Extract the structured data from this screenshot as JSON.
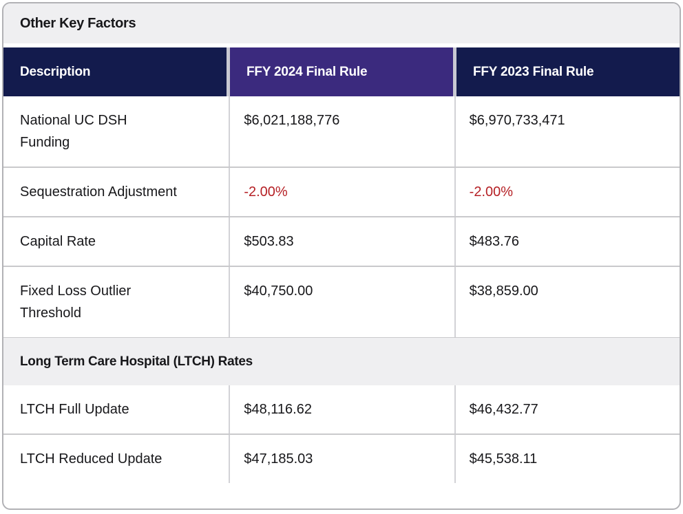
{
  "table": {
    "title": "Other Key Factors",
    "columns": [
      {
        "label": "Description"
      },
      {
        "label": "FFY 2024 Final Rule"
      },
      {
        "label": "FFY 2023 Final Rule"
      }
    ],
    "sections": [
      {
        "rows": [
          {
            "label": "National UC DSH Funding",
            "ffy2024": "$6,021,188,776",
            "ffy2023": "$6,970,733,471"
          },
          {
            "label": "Sequestration Adjustment",
            "ffy2024": "-2.00%",
            "ffy2023": "-2.00%"
          },
          {
            "label": "Capital Rate",
            "ffy2024": "$503.83",
            "ffy2023": "$483.76"
          },
          {
            "label": "Fixed Loss Outlier Threshold",
            "ffy2024": "$40,750.00",
            "ffy2023": "$38,859.00"
          }
        ]
      },
      {
        "section_title": "Long Term Care Hospital (LTCH) Rates",
        "rows": [
          {
            "label": "LTCH Full Update",
            "ffy2024": "$48,116.62",
            "ffy2023": "$46,432.77"
          },
          {
            "label": "LTCH Reduced Update",
            "ffy2024": "$47,185.03",
            "ffy2023": "$45,538.11"
          }
        ]
      }
    ]
  },
  "colors": {
    "navy": "#131b4d",
    "purple": "#3b2a7e",
    "band_gray": "#efeff1",
    "negative_value": "#b52025",
    "card_border": "#b1b1b5"
  }
}
